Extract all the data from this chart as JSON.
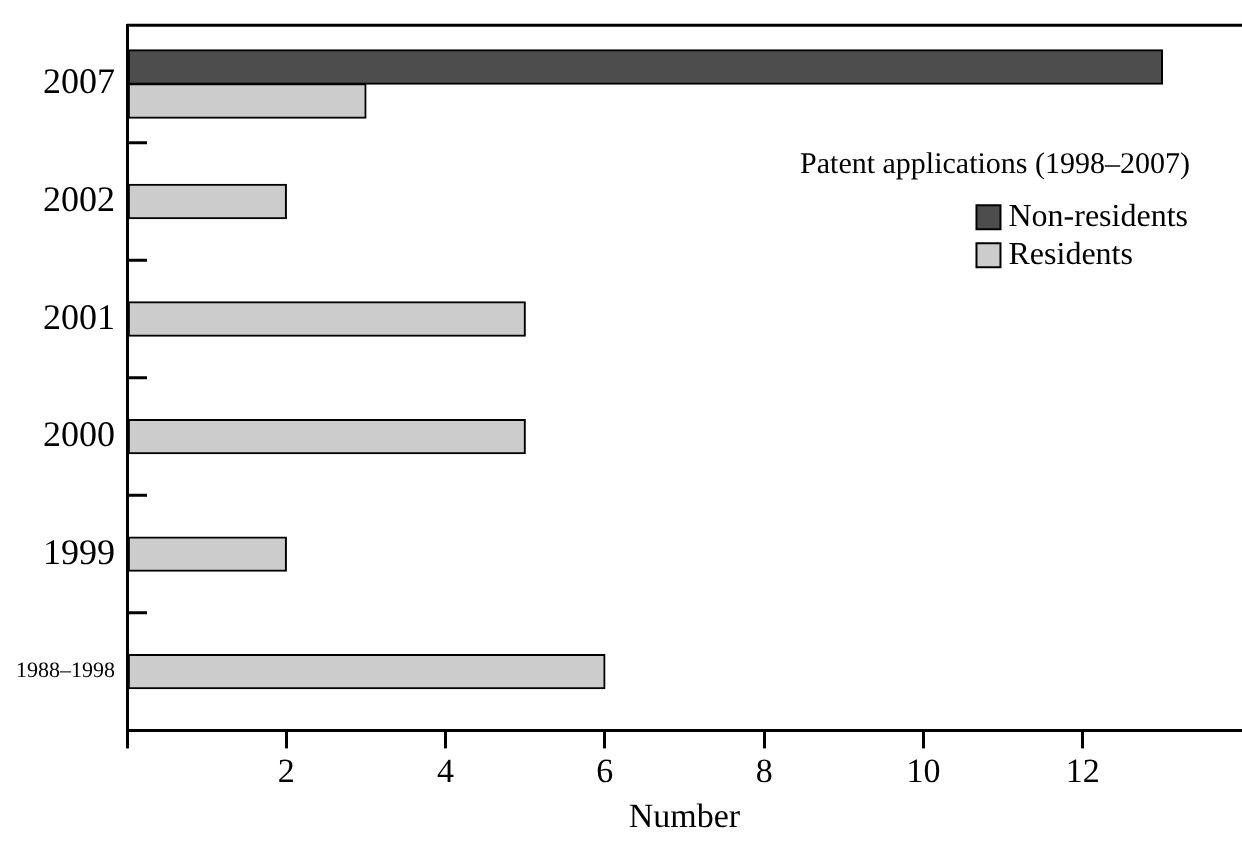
{
  "chart_data": {
    "type": "bar",
    "orientation": "horizontal",
    "xlabel": "Number",
    "legend_title": "Patent applications (1998–2007)",
    "legend": "top right",
    "grid": false,
    "categories": [
      "2007",
      "2002",
      "2001",
      "2000",
      "1999",
      "1988–1998"
    ],
    "series": [
      {
        "name": "Non-residents",
        "color": "#4d4d4d",
        "values": [
          13,
          null,
          null,
          null,
          null,
          null
        ]
      },
      {
        "name": "Residents",
        "color": "#cccccc",
        "values": [
          3,
          2,
          5,
          5,
          2,
          6
        ]
      }
    ],
    "xlim": [
      0,
      14
    ],
    "xticks": [
      {
        "value": 0,
        "label": null
      },
      2,
      4,
      6,
      8,
      10,
      12
    ]
  }
}
